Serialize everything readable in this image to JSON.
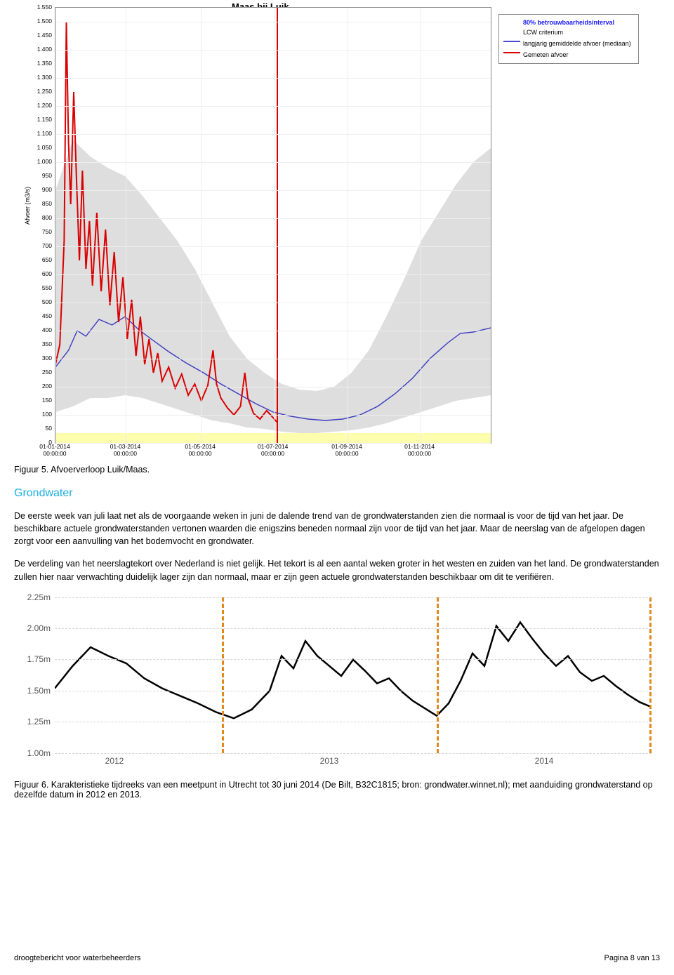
{
  "chart1": {
    "type": "line",
    "title": "Maas bij Luik",
    "yaxis_label": "Afvoer (m3/s)",
    "ylim": [
      0,
      1550
    ],
    "ytick_step": 50,
    "yticks": [
      0,
      50,
      100,
      150,
      200,
      250,
      300,
      350,
      400,
      450,
      500,
      550,
      600,
      650,
      700,
      750,
      800,
      850,
      900,
      950,
      1000,
      1050,
      1100,
      1150,
      1200,
      1250,
      1300,
      1350,
      1400,
      1450,
      1500,
      1550
    ],
    "yticks_format_thousands": true,
    "xticks": [
      {
        "pos": 0.0,
        "line1": "01-01-2014",
        "line2": "00:00:00"
      },
      {
        "pos": 0.162,
        "line1": "01-03-2014",
        "line2": "00:00:00"
      },
      {
        "pos": 0.334,
        "line1": "01-05-2014",
        "line2": "00:00:00"
      },
      {
        "pos": 0.501,
        "line1": "01-07-2014",
        "line2": "00:00:00"
      },
      {
        "pos": 0.671,
        "line1": "01-09-2014",
        "line2": "00:00:00"
      },
      {
        "pos": 0.838,
        "line1": "01-11-2014",
        "line2": "00:00:00"
      }
    ],
    "marker_pos": 0.508,
    "yellow_band_height": 14,
    "grid_color": "#eeeeee",
    "background_color": "#ffffff",
    "legend": {
      "items": [
        {
          "color_swatch": "none",
          "label": "80% betrouwbaarheidsinterval",
          "text_color": "#1a1aff",
          "bold": true
        },
        {
          "color_swatch": "none",
          "label": "LCW criterium",
          "text_color": "#000000"
        },
        {
          "color_swatch": "#4a4ad0",
          "label": "langjarig gemiddelde afvoer (mediaan)",
          "text_color": "#000000",
          "swatch_type": "line"
        },
        {
          "color_swatch": "#da0000",
          "label": "Gemeten afvoer",
          "text_color": "#000000",
          "swatch_type": "line"
        }
      ]
    },
    "band_80pct": [
      {
        "x": 0.0,
        "lo": 110,
        "hi": 900
      },
      {
        "x": 0.04,
        "lo": 130,
        "hi": 1080
      },
      {
        "x": 0.08,
        "lo": 160,
        "hi": 1020
      },
      {
        "x": 0.12,
        "lo": 160,
        "hi": 980
      },
      {
        "x": 0.16,
        "lo": 170,
        "hi": 950
      },
      {
        "x": 0.2,
        "lo": 160,
        "hi": 880
      },
      {
        "x": 0.24,
        "lo": 140,
        "hi": 800
      },
      {
        "x": 0.28,
        "lo": 120,
        "hi": 720
      },
      {
        "x": 0.32,
        "lo": 100,
        "hi": 620
      },
      {
        "x": 0.36,
        "lo": 80,
        "hi": 500
      },
      {
        "x": 0.4,
        "lo": 70,
        "hi": 380
      },
      {
        "x": 0.44,
        "lo": 55,
        "hi": 300
      },
      {
        "x": 0.48,
        "lo": 50,
        "hi": 250
      },
      {
        "x": 0.52,
        "lo": 40,
        "hi": 210
      },
      {
        "x": 0.56,
        "lo": 35,
        "hi": 190
      },
      {
        "x": 0.6,
        "lo": 35,
        "hi": 185
      },
      {
        "x": 0.64,
        "lo": 40,
        "hi": 200
      },
      {
        "x": 0.68,
        "lo": 45,
        "hi": 250
      },
      {
        "x": 0.72,
        "lo": 55,
        "hi": 330
      },
      {
        "x": 0.76,
        "lo": 70,
        "hi": 450
      },
      {
        "x": 0.8,
        "lo": 90,
        "hi": 580
      },
      {
        "x": 0.84,
        "lo": 110,
        "hi": 720
      },
      {
        "x": 0.88,
        "lo": 130,
        "hi": 820
      },
      {
        "x": 0.92,
        "lo": 150,
        "hi": 920
      },
      {
        "x": 0.96,
        "lo": 160,
        "hi": 1000
      },
      {
        "x": 1.0,
        "lo": 170,
        "hi": 1050
      }
    ],
    "median_line": [
      {
        "x": 0.0,
        "y": 270
      },
      {
        "x": 0.03,
        "y": 330
      },
      {
        "x": 0.05,
        "y": 400
      },
      {
        "x": 0.07,
        "y": 380
      },
      {
        "x": 0.1,
        "y": 440
      },
      {
        "x": 0.13,
        "y": 420
      },
      {
        "x": 0.16,
        "y": 450
      },
      {
        "x": 0.19,
        "y": 405
      },
      {
        "x": 0.22,
        "y": 370
      },
      {
        "x": 0.26,
        "y": 325
      },
      {
        "x": 0.3,
        "y": 285
      },
      {
        "x": 0.34,
        "y": 250
      },
      {
        "x": 0.38,
        "y": 210
      },
      {
        "x": 0.42,
        "y": 175
      },
      {
        "x": 0.46,
        "y": 140
      },
      {
        "x": 0.5,
        "y": 110
      },
      {
        "x": 0.54,
        "y": 95
      },
      {
        "x": 0.58,
        "y": 85
      },
      {
        "x": 0.62,
        "y": 80
      },
      {
        "x": 0.66,
        "y": 85
      },
      {
        "x": 0.7,
        "y": 100
      },
      {
        "x": 0.74,
        "y": 130
      },
      {
        "x": 0.78,
        "y": 175
      },
      {
        "x": 0.82,
        "y": 230
      },
      {
        "x": 0.86,
        "y": 300
      },
      {
        "x": 0.9,
        "y": 355
      },
      {
        "x": 0.93,
        "y": 390
      },
      {
        "x": 0.96,
        "y": 395
      },
      {
        "x": 1.0,
        "y": 410
      }
    ],
    "measured_line": [
      {
        "x": 0.0,
        "y": 280
      },
      {
        "x": 0.01,
        "y": 350
      },
      {
        "x": 0.02,
        "y": 720
      },
      {
        "x": 0.025,
        "y": 1500
      },
      {
        "x": 0.03,
        "y": 1070
      },
      {
        "x": 0.035,
        "y": 850
      },
      {
        "x": 0.042,
        "y": 1250
      },
      {
        "x": 0.048,
        "y": 950
      },
      {
        "x": 0.055,
        "y": 650
      },
      {
        "x": 0.062,
        "y": 970
      },
      {
        "x": 0.07,
        "y": 620
      },
      {
        "x": 0.078,
        "y": 790
      },
      {
        "x": 0.085,
        "y": 560
      },
      {
        "x": 0.095,
        "y": 820
      },
      {
        "x": 0.105,
        "y": 540
      },
      {
        "x": 0.115,
        "y": 760
      },
      {
        "x": 0.125,
        "y": 490
      },
      {
        "x": 0.135,
        "y": 680
      },
      {
        "x": 0.145,
        "y": 430
      },
      {
        "x": 0.155,
        "y": 590
      },
      {
        "x": 0.165,
        "y": 370
      },
      {
        "x": 0.175,
        "y": 510
      },
      {
        "x": 0.185,
        "y": 310
      },
      {
        "x": 0.195,
        "y": 450
      },
      {
        "x": 0.205,
        "y": 280
      },
      {
        "x": 0.215,
        "y": 370
      },
      {
        "x": 0.225,
        "y": 250
      },
      {
        "x": 0.235,
        "y": 320
      },
      {
        "x": 0.245,
        "y": 220
      },
      {
        "x": 0.26,
        "y": 270
      },
      {
        "x": 0.275,
        "y": 195
      },
      {
        "x": 0.29,
        "y": 245
      },
      {
        "x": 0.305,
        "y": 170
      },
      {
        "x": 0.32,
        "y": 210
      },
      {
        "x": 0.335,
        "y": 150
      },
      {
        "x": 0.35,
        "y": 205
      },
      {
        "x": 0.362,
        "y": 330
      },
      {
        "x": 0.37,
        "y": 210
      },
      {
        "x": 0.38,
        "y": 160
      },
      {
        "x": 0.395,
        "y": 125
      },
      {
        "x": 0.41,
        "y": 100
      },
      {
        "x": 0.425,
        "y": 130
      },
      {
        "x": 0.435,
        "y": 250
      },
      {
        "x": 0.442,
        "y": 160
      },
      {
        "x": 0.455,
        "y": 105
      },
      {
        "x": 0.47,
        "y": 85
      },
      {
        "x": 0.485,
        "y": 115
      },
      {
        "x": 0.5,
        "y": 90
      },
      {
        "x": 0.508,
        "y": 75
      }
    ],
    "colors": {
      "band": "#d8d8d8",
      "median": "#3a3ac0",
      "measured": "#da0000",
      "marker": "#da0000"
    }
  },
  "caption1": "Figuur 5. Afvoerverloop Luik/Maas.",
  "section_heading": "Grondwater",
  "para1": "De eerste week van juli laat net als de voorgaande weken in juni de dalende trend van de grondwaterstanden zien die normaal is voor de tijd van het jaar. De beschikbare actuele grondwaterstanden vertonen waarden die enigszins beneden normaal zijn voor de tijd van het jaar. Maar de neerslag van de afgelopen dagen zorgt voor een aanvulling van het bodemvocht en grondwater.",
  "para2": "De verdeling van het neerslagtekort over Nederland is niet gelijk. Het tekort is al een aantal weken groter in het westen en zuiden van het land. De grondwaterstanden zullen hier naar verwachting duidelijk lager zijn dan normaal, maar er zijn geen actuele grondwaterstanden beschikbaar om dit te verifiëren.",
  "chart2": {
    "type": "line",
    "ylim": [
      1.0,
      2.25
    ],
    "yticks": [
      "1.00m",
      "1.25m",
      "1.50m",
      "1.75m",
      "2.00m",
      "2.25m"
    ],
    "xticks": [
      {
        "pos": 0.1,
        "label": "2012"
      },
      {
        "pos": 0.46,
        "label": "2013"
      },
      {
        "pos": 0.82,
        "label": "2014"
      }
    ],
    "dash_markers": [
      {
        "pos": 0.28,
        "color": "#e08a1e"
      },
      {
        "pos": 0.64,
        "color": "#e08a1e"
      },
      {
        "pos": 0.996,
        "color": "#e08a1e"
      }
    ],
    "line_color": "#000000",
    "grid_color": "#d6d6d6",
    "series": [
      {
        "x": 0.0,
        "y": 1.52
      },
      {
        "x": 0.03,
        "y": 1.7
      },
      {
        "x": 0.06,
        "y": 1.85
      },
      {
        "x": 0.09,
        "y": 1.78
      },
      {
        "x": 0.12,
        "y": 1.72
      },
      {
        "x": 0.15,
        "y": 1.6
      },
      {
        "x": 0.18,
        "y": 1.52
      },
      {
        "x": 0.21,
        "y": 1.46
      },
      {
        "x": 0.24,
        "y": 1.4
      },
      {
        "x": 0.27,
        "y": 1.33
      },
      {
        "x": 0.3,
        "y": 1.28
      },
      {
        "x": 0.33,
        "y": 1.35
      },
      {
        "x": 0.36,
        "y": 1.5
      },
      {
        "x": 0.38,
        "y": 1.78
      },
      {
        "x": 0.4,
        "y": 1.68
      },
      {
        "x": 0.42,
        "y": 1.9
      },
      {
        "x": 0.44,
        "y": 1.78
      },
      {
        "x": 0.46,
        "y": 1.7
      },
      {
        "x": 0.48,
        "y": 1.62
      },
      {
        "x": 0.5,
        "y": 1.75
      },
      {
        "x": 0.52,
        "y": 1.66
      },
      {
        "x": 0.54,
        "y": 1.56
      },
      {
        "x": 0.56,
        "y": 1.6
      },
      {
        "x": 0.58,
        "y": 1.5
      },
      {
        "x": 0.6,
        "y": 1.42
      },
      {
        "x": 0.62,
        "y": 1.36
      },
      {
        "x": 0.64,
        "y": 1.3
      },
      {
        "x": 0.66,
        "y": 1.4
      },
      {
        "x": 0.68,
        "y": 1.58
      },
      {
        "x": 0.7,
        "y": 1.8
      },
      {
        "x": 0.72,
        "y": 1.7
      },
      {
        "x": 0.74,
        "y": 2.02
      },
      {
        "x": 0.76,
        "y": 1.9
      },
      {
        "x": 0.78,
        "y": 2.05
      },
      {
        "x": 0.8,
        "y": 1.92
      },
      {
        "x": 0.82,
        "y": 1.8
      },
      {
        "x": 0.84,
        "y": 1.7
      },
      {
        "x": 0.86,
        "y": 1.78
      },
      {
        "x": 0.88,
        "y": 1.65
      },
      {
        "x": 0.9,
        "y": 1.58
      },
      {
        "x": 0.92,
        "y": 1.62
      },
      {
        "x": 0.94,
        "y": 1.54
      },
      {
        "x": 0.96,
        "y": 1.47
      },
      {
        "x": 0.98,
        "y": 1.41
      },
      {
        "x": 1.0,
        "y": 1.37
      }
    ]
  },
  "caption2": "Figuur 6. Karakteristieke tijdreeks van een meetpunt in Utrecht tot 30 juni 2014 (De Bilt, B32C1815; bron: grondwater.winnet.nl); met aanduiding grondwaterstand op dezelfde datum in 2012 en 2013.",
  "footer": {
    "left": "droogtebericht voor waterbeheerders",
    "right": "Pagina 8 van 13"
  }
}
